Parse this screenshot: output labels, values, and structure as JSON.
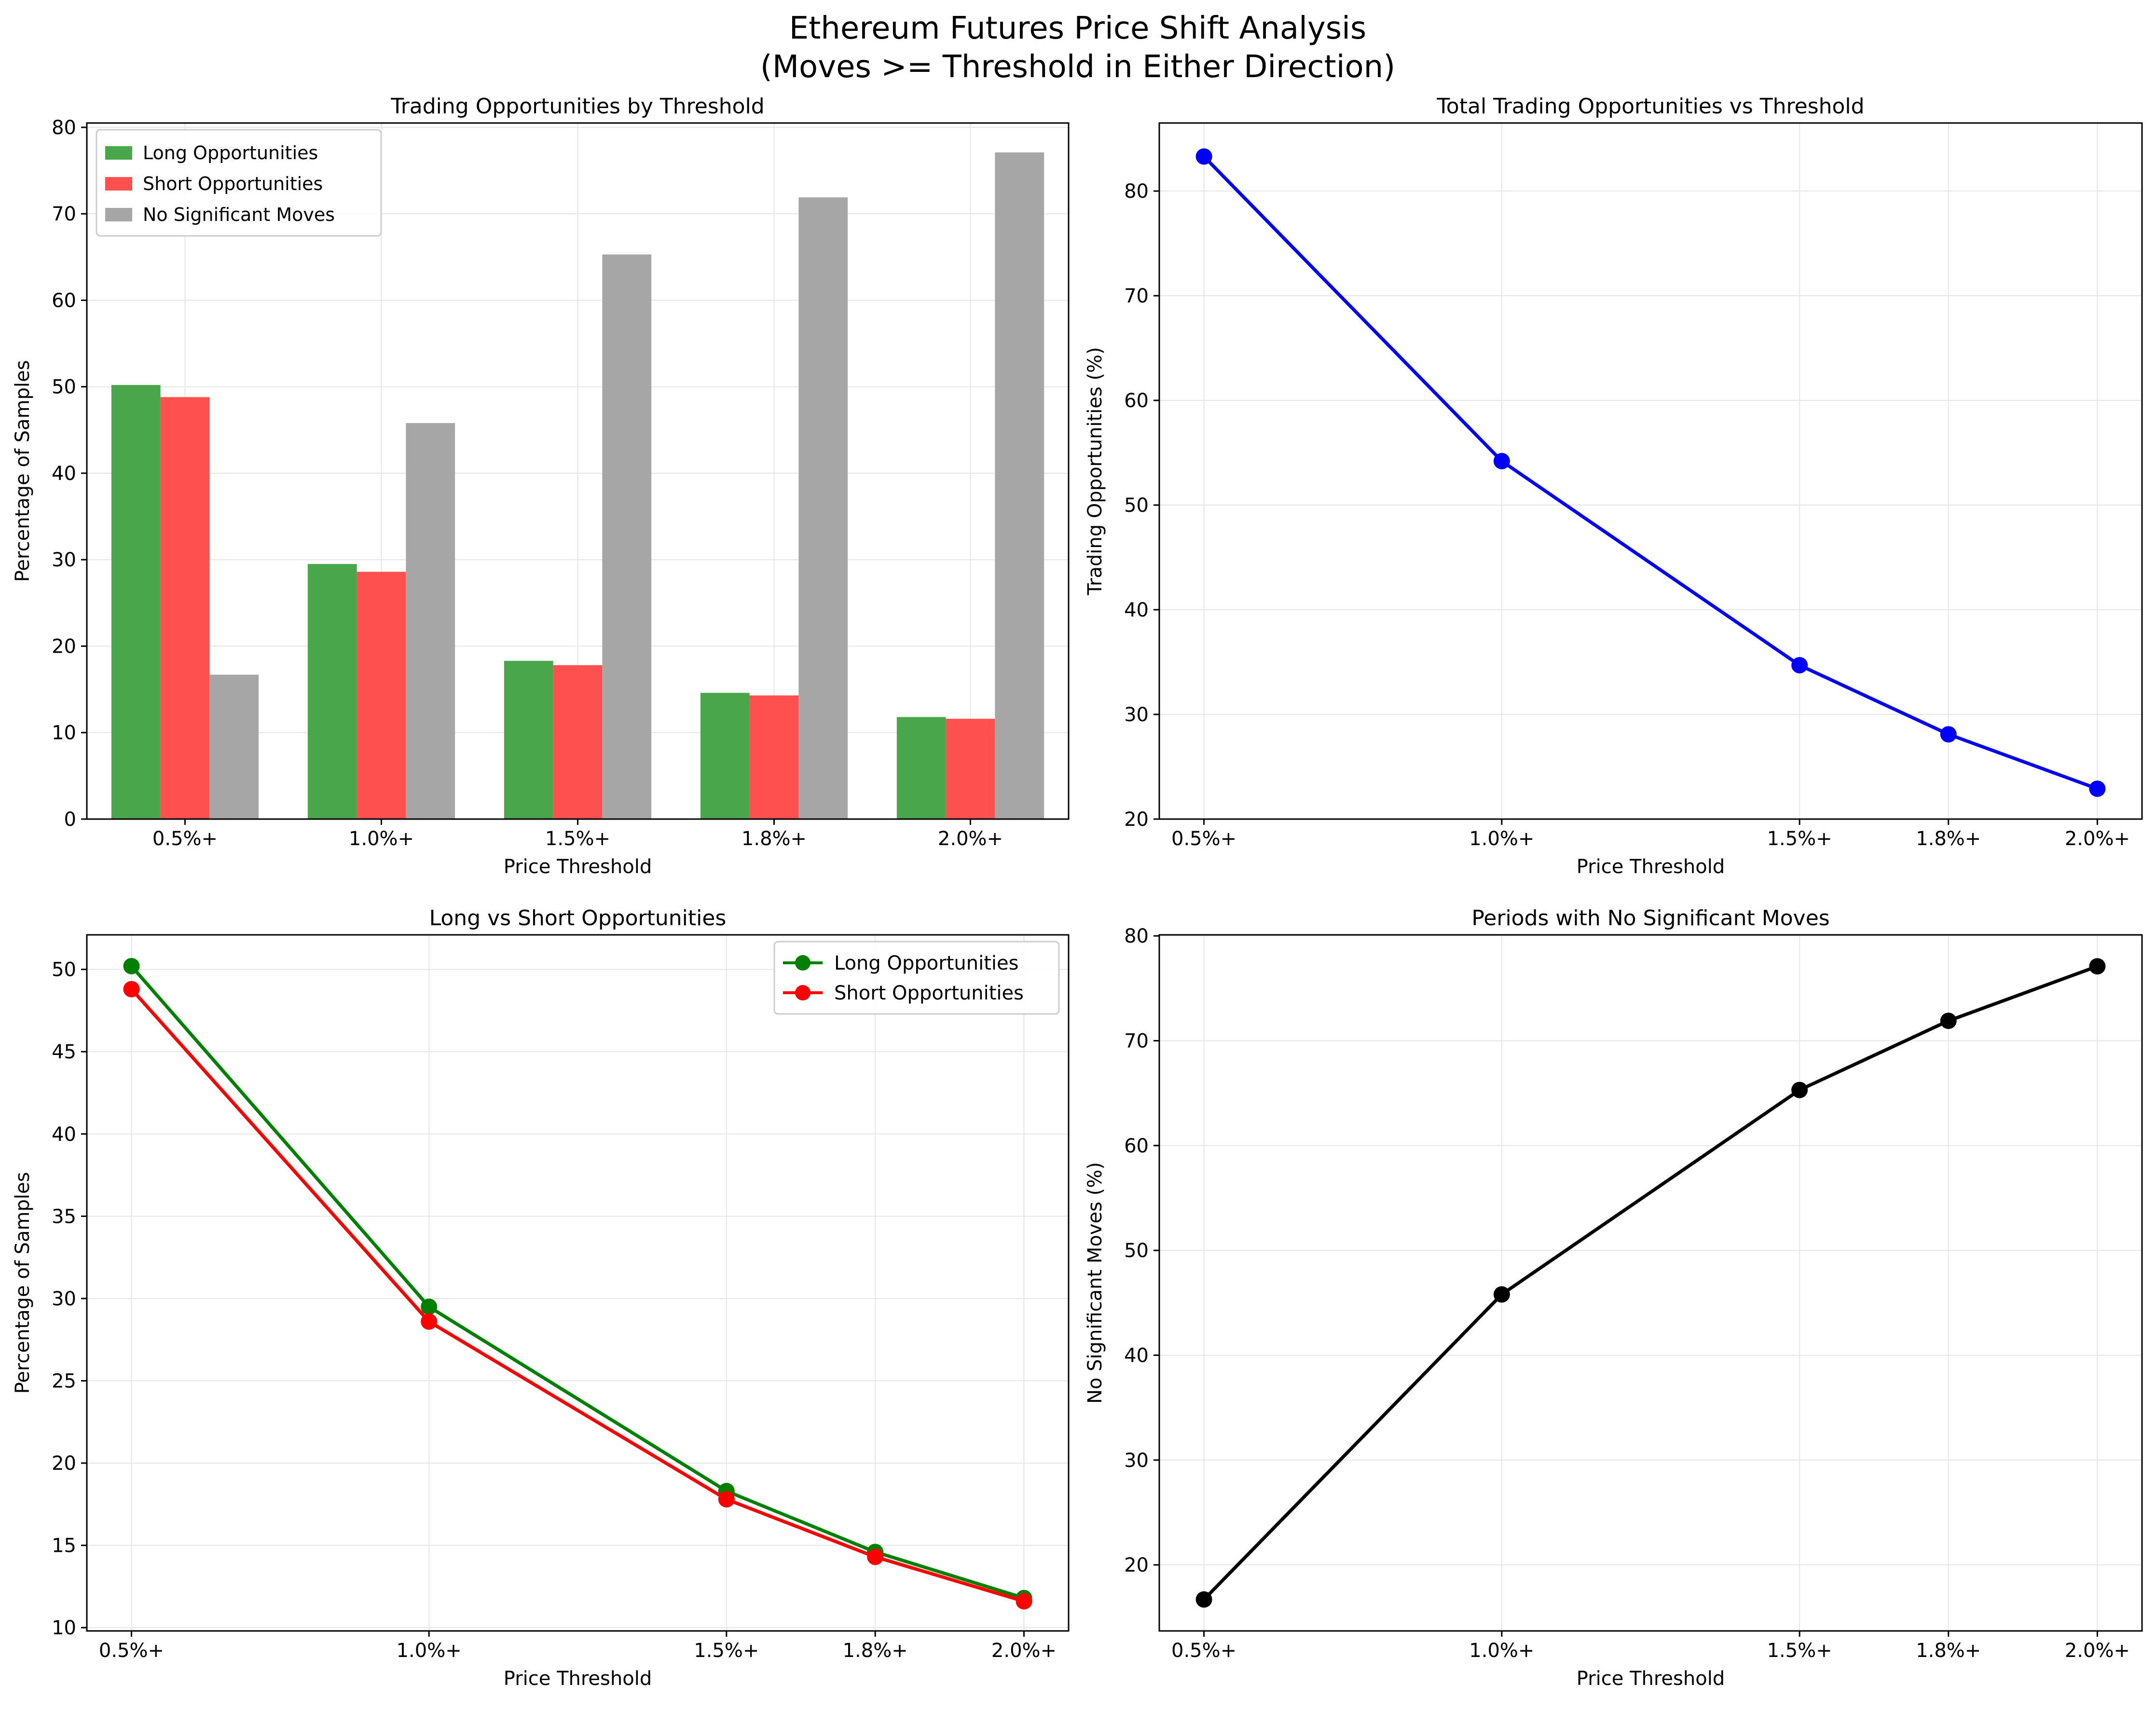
{
  "figure": {
    "title_line1": "Ethereum Futures Price Shift Analysis",
    "title_line2": "(Moves >= Threshold in Either Direction)"
  },
  "chart_data": [
    {
      "type": "bar",
      "title": "Trading Opportunities by Threshold",
      "xlabel": "Price Threshold",
      "ylabel": "Percentage of Samples",
      "categories": [
        "0.5%+",
        "1.0%+",
        "1.5%+",
        "1.8%+",
        "2.0%+"
      ],
      "series": [
        {
          "name": "Long Opportunities",
          "color": "#4aa64a",
          "values": [
            50.2,
            29.5,
            18.3,
            14.6,
            11.8
          ]
        },
        {
          "name": "Short Opportunities",
          "color": "#ff5050",
          "values": [
            48.8,
            28.6,
            17.8,
            14.3,
            11.6
          ]
        },
        {
          "name": "No Significant Moves",
          "color": "#a6a6a6",
          "values": [
            16.7,
            45.8,
            65.3,
            71.9,
            77.1
          ]
        }
      ],
      "ylim": [
        0,
        80.5
      ],
      "yticks": [
        0,
        10,
        20,
        30,
        40,
        50,
        60,
        70,
        80
      ],
      "grid": true,
      "legend": "top-left"
    },
    {
      "type": "line",
      "title": "Total Trading Opportunities vs Threshold",
      "xlabel": "Price Threshold",
      "ylabel": "Trading Opportunities (%)",
      "x": [
        0.5,
        1.0,
        1.5,
        1.75,
        2.0
      ],
      "xticklabels": [
        "0.5%+",
        "1.0%+",
        "1.5%+",
        "1.8%+",
        "2.0%+"
      ],
      "xlim": [
        0.425,
        2.075
      ],
      "ylim": [
        20,
        86.5
      ],
      "yticks": [
        20,
        30,
        40,
        50,
        60,
        70,
        80
      ],
      "series": [
        {
          "values": [
            83.3,
            54.2,
            34.7,
            28.1,
            22.9
          ],
          "color": "#0000ff"
        }
      ],
      "grid": true
    },
    {
      "type": "line",
      "title": "Long vs Short Opportunities",
      "xlabel": "Price Threshold",
      "ylabel": "Percentage of Samples",
      "x": [
        0.5,
        1.0,
        1.5,
        1.75,
        2.0
      ],
      "xticklabels": [
        "0.5%+",
        "1.0%+",
        "1.5%+",
        "1.8%+",
        "2.0%+"
      ],
      "xlim": [
        0.425,
        2.075
      ],
      "ylim": [
        9.8,
        52.1
      ],
      "yticks": [
        10,
        15,
        20,
        25,
        30,
        35,
        40,
        45,
        50
      ],
      "series": [
        {
          "name": "Long Opportunities",
          "values": [
            50.2,
            29.5,
            18.3,
            14.6,
            11.8
          ],
          "color": "#008000"
        },
        {
          "name": "Short Opportunities",
          "values": [
            48.8,
            28.6,
            17.8,
            14.3,
            11.6
          ],
          "color": "#ff0000"
        }
      ],
      "grid": true,
      "legend": "top-right"
    },
    {
      "type": "line",
      "title": "Periods with No Significant Moves",
      "xlabel": "Price Threshold",
      "ylabel": "No Significant Moves (%)",
      "x": [
        0.5,
        1.0,
        1.5,
        1.75,
        2.0
      ],
      "xticklabels": [
        "0.5%+",
        "1.0%+",
        "1.5%+",
        "1.8%+",
        "2.0%+"
      ],
      "xlim": [
        0.425,
        2.075
      ],
      "ylim": [
        13.7,
        80.1
      ],
      "yticks": [
        20,
        30,
        40,
        50,
        60,
        70,
        80
      ],
      "series": [
        {
          "values": [
            16.7,
            45.8,
            65.3,
            71.9,
            77.1
          ],
          "color": "#000000"
        }
      ],
      "grid": true
    }
  ]
}
